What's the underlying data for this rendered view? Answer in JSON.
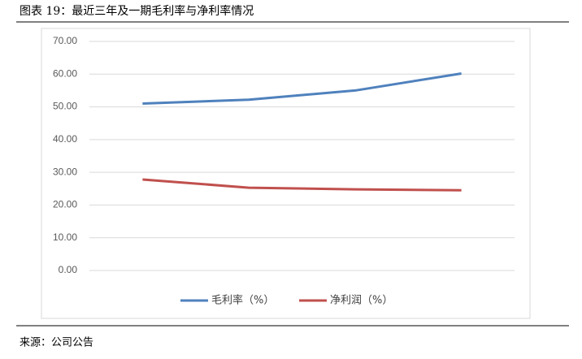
{
  "chart_data": {
    "type": "line",
    "title": "图表 19：最近三年及一期毛利率与净利率情况",
    "source": "来源：公司公告",
    "categories": [
      null,
      null,
      null,
      null
    ],
    "series": [
      {
        "name": "毛利率（%）",
        "color": "#4f81bd",
        "values": [
          51.0,
          52.2,
          55.0,
          60.2
        ]
      },
      {
        "name": "净利润（%）",
        "color": "#c0504d",
        "values": [
          27.8,
          25.3,
          24.8,
          24.5
        ]
      }
    ],
    "ylim": [
      0,
      70
    ],
    "yticks": [
      {
        "value": 0,
        "label": "0.00"
      },
      {
        "value": 10,
        "label": "10.00"
      },
      {
        "value": 20,
        "label": "20.00"
      },
      {
        "value": 30,
        "label": "30.00"
      },
      {
        "value": 40,
        "label": "40.00"
      },
      {
        "value": 50,
        "label": "50.00"
      },
      {
        "value": 60,
        "label": "60.00"
      },
      {
        "value": 70,
        "label": "70.00"
      }
    ],
    "grid": true,
    "legend": "bottom"
  }
}
